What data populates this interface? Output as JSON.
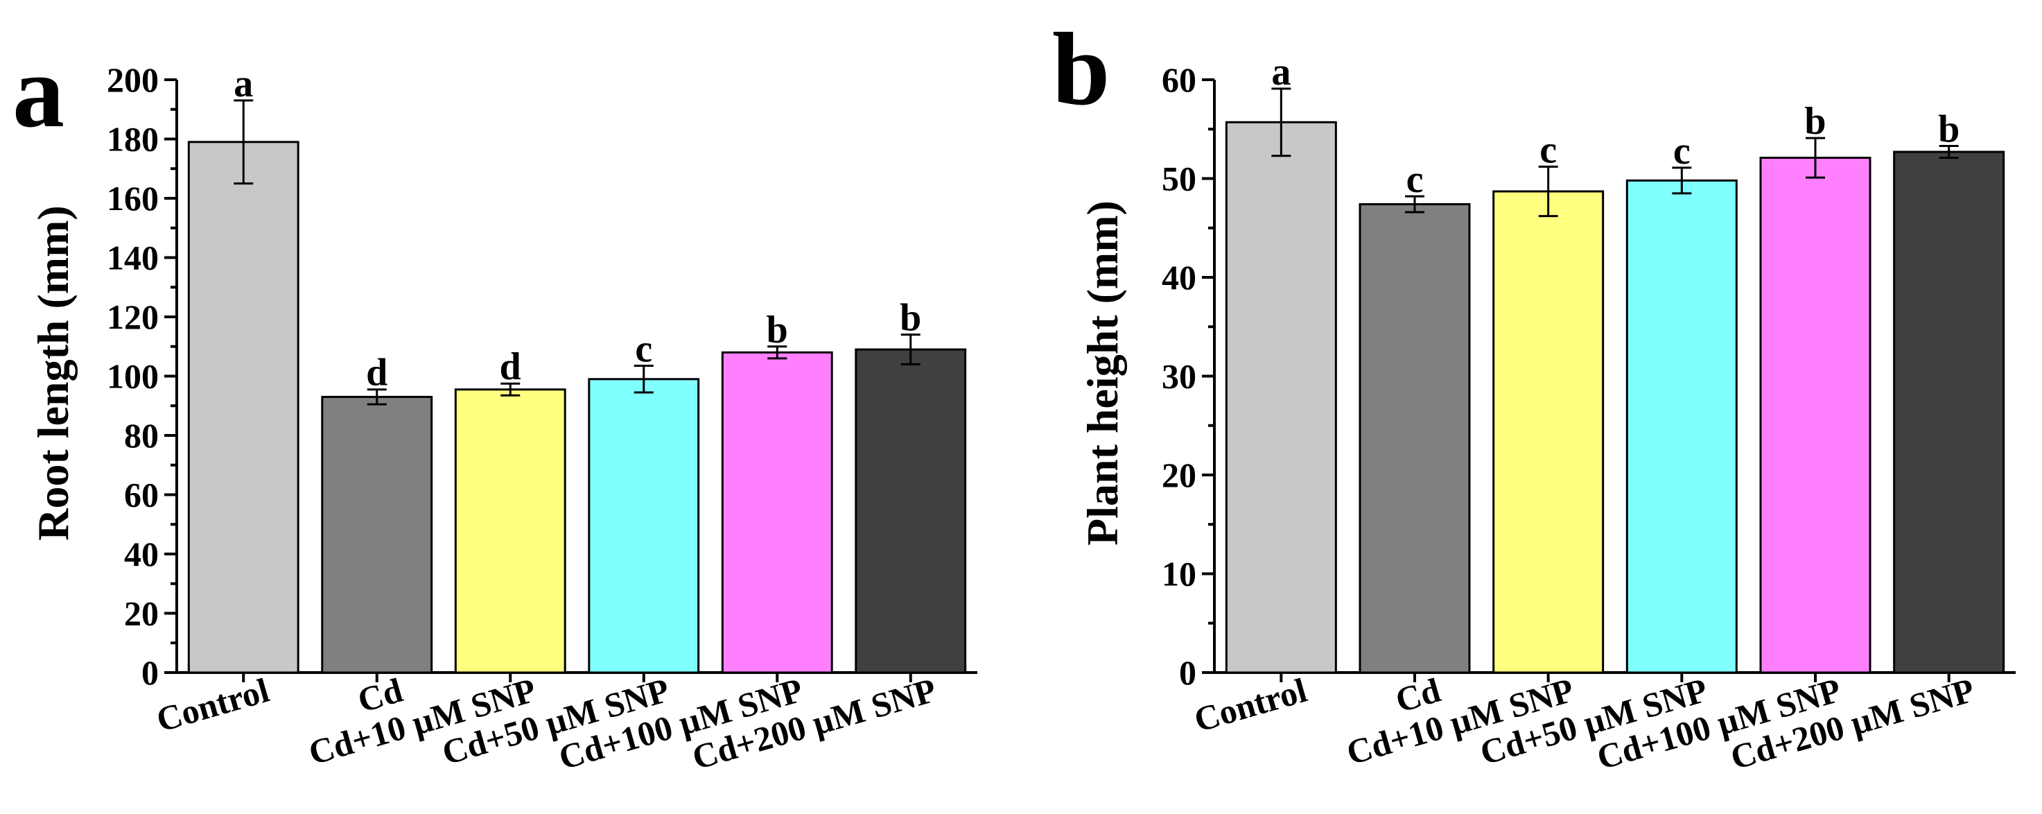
{
  "chart_data": [
    {
      "type": "bar",
      "panel_label": "a",
      "ylabel": "Root length (mm)",
      "xlabel": "",
      "ylim": [
        0,
        200
      ],
      "yticks": [
        0,
        20,
        40,
        60,
        80,
        100,
        120,
        140,
        160,
        180,
        200
      ],
      "categories": [
        "Control",
        "Cd",
        "Cd+10 µM SNP",
        "Cd+50 µM SNP",
        "Cd+100 µM SNP",
        "Cd+200 µM SNP"
      ],
      "values": [
        179,
        93,
        95.5,
        99,
        108,
        109
      ],
      "errors": [
        14,
        2.5,
        2,
        4.5,
        2,
        5
      ],
      "significance": [
        "a",
        "d",
        "d",
        "c",
        "b",
        "b"
      ],
      "colors": [
        "#c8c8c8",
        "#808080",
        "#ffff80",
        "#80ffff",
        "#ff80ff",
        "#404040"
      ],
      "grid": false
    },
    {
      "type": "bar",
      "panel_label": "b",
      "ylabel": "Plant height (mm)",
      "xlabel": "",
      "ylim": [
        0,
        60
      ],
      "yticks": [
        0,
        10,
        20,
        30,
        40,
        50,
        60
      ],
      "categories": [
        "Control",
        "Cd",
        "Cd+10 µM SNP",
        "Cd+50 µM SNP",
        "Cd+100 µM SNP",
        "Cd+200 µM SNP"
      ],
      "values": [
        55.7,
        47.4,
        48.7,
        49.8,
        52.1,
        52.7
      ],
      "errors": [
        3.4,
        0.8,
        2.5,
        1.3,
        2.0,
        0.6
      ],
      "significance": [
        "a",
        "c",
        "c",
        "c",
        "b",
        "b"
      ],
      "colors": [
        "#c8c8c8",
        "#808080",
        "#ffff80",
        "#80ffff",
        "#ff80ff",
        "#404040"
      ],
      "grid": false
    }
  ]
}
